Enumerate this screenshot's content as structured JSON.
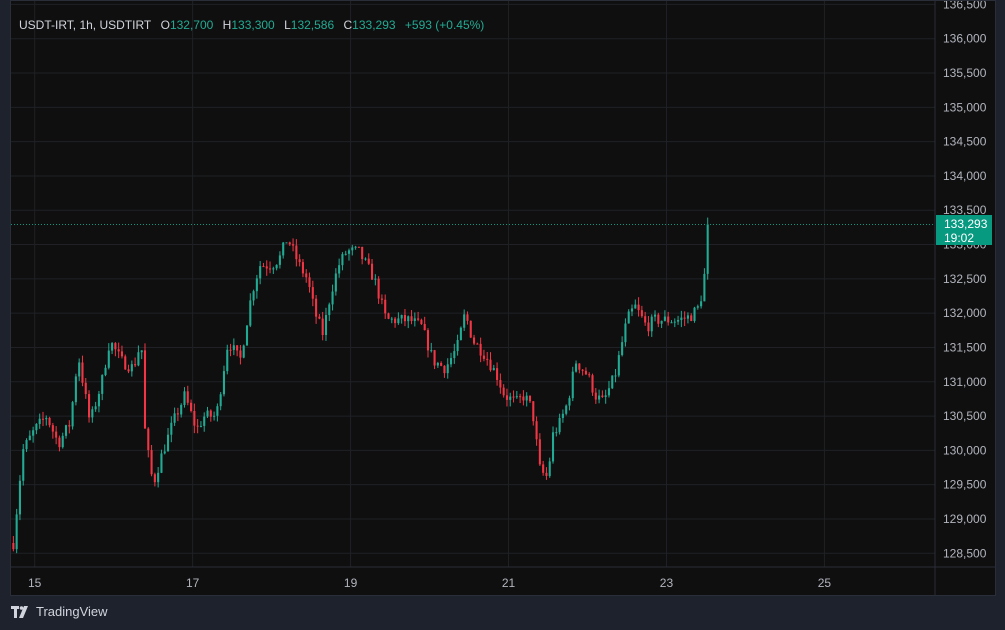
{
  "legend": {
    "symbol": "USDT-IRT, 1h, USDTIRT",
    "open_label": "O",
    "open": "132,700",
    "high_label": "H",
    "high": "133,300",
    "low_label": "L",
    "low": "132,586",
    "close_label": "C",
    "close": "133,293",
    "change": "+593 (+0.45%)"
  },
  "price_tag": {
    "price": "133,293",
    "countdown": "19:02"
  },
  "brand": {
    "logo_text": "TradingView"
  },
  "colors": {
    "up": "#22ab94",
    "down": "#f23645",
    "background": "#0f0f0f",
    "grid": "#1f2126",
    "axis_text": "#b2b5be",
    "last_price": "#089981"
  },
  "chart_data": {
    "type": "candlestick",
    "symbol": "USDT-IRT",
    "interval": "1h",
    "x_ticks": [
      "15",
      "17",
      "19",
      "21",
      "23",
      "25"
    ],
    "y_ticks": [
      128500,
      129000,
      129500,
      130000,
      130500,
      131000,
      131500,
      132000,
      132500,
      133000,
      133500,
      134000,
      134500,
      135000,
      135500,
      136000,
      136500
    ],
    "ylim": [
      128300,
      136550
    ],
    "xlim_days": [
      14.7,
      26.4
    ],
    "first_candle_day": 14.73,
    "candle_hours": 1,
    "last_price": 133293,
    "grid": true,
    "close_path": [
      [
        14.73,
        128650
      ],
      [
        14.85,
        130000
      ],
      [
        15.0,
        130300
      ],
      [
        15.15,
        130500
      ],
      [
        15.3,
        130100
      ],
      [
        15.45,
        130400
      ],
      [
        15.55,
        131400
      ],
      [
        15.7,
        130400
      ],
      [
        15.85,
        131000
      ],
      [
        15.95,
        131600
      ],
      [
        16.1,
        131300
      ],
      [
        16.25,
        131200
      ],
      [
        16.35,
        131600
      ],
      [
        16.4,
        130200
      ],
      [
        16.5,
        129500
      ],
      [
        16.6,
        129900
      ],
      [
        16.75,
        130400
      ],
      [
        16.9,
        130800
      ],
      [
        17.05,
        130300
      ],
      [
        17.15,
        130500
      ],
      [
        17.3,
        130500
      ],
      [
        17.45,
        131600
      ],
      [
        17.6,
        131300
      ],
      [
        17.75,
        132300
      ],
      [
        17.85,
        132700
      ],
      [
        18.0,
        132700
      ],
      [
        18.1,
        132800
      ],
      [
        18.2,
        133100
      ],
      [
        18.35,
        132700
      ],
      [
        18.45,
        132500
      ],
      [
        18.55,
        132000
      ],
      [
        18.65,
        131700
      ],
      [
        18.75,
        132300
      ],
      [
        18.85,
        132700
      ],
      [
        18.95,
        132900
      ],
      [
        19.1,
        132900
      ],
      [
        19.2,
        132700
      ],
      [
        19.3,
        132500
      ],
      [
        19.45,
        131900
      ],
      [
        19.6,
        131900
      ],
      [
        19.75,
        131900
      ],
      [
        19.9,
        131800
      ],
      [
        20.05,
        131300
      ],
      [
        20.2,
        131200
      ],
      [
        20.35,
        131500
      ],
      [
        20.45,
        132000
      ],
      [
        20.55,
        131600
      ],
      [
        20.7,
        131400
      ],
      [
        20.85,
        131100
      ],
      [
        20.95,
        130800
      ],
      [
        21.1,
        130700
      ],
      [
        21.2,
        130800
      ],
      [
        21.3,
        130600
      ],
      [
        21.4,
        129700
      ],
      [
        21.5,
        129600
      ],
      [
        21.55,
        130200
      ],
      [
        21.65,
        130400
      ],
      [
        21.75,
        130700
      ],
      [
        21.85,
        131300
      ],
      [
        22.0,
        131100
      ],
      [
        22.1,
        130800
      ],
      [
        22.2,
        130700
      ],
      [
        22.35,
        131100
      ],
      [
        22.5,
        131900
      ],
      [
        22.6,
        132100
      ],
      [
        22.75,
        131800
      ],
      [
        22.85,
        131900
      ],
      [
        23.0,
        131900
      ],
      [
        23.15,
        131900
      ],
      [
        23.3,
        131950
      ],
      [
        23.42,
        132100
      ],
      [
        23.5,
        132700
      ],
      [
        23.55,
        133293
      ]
    ]
  }
}
